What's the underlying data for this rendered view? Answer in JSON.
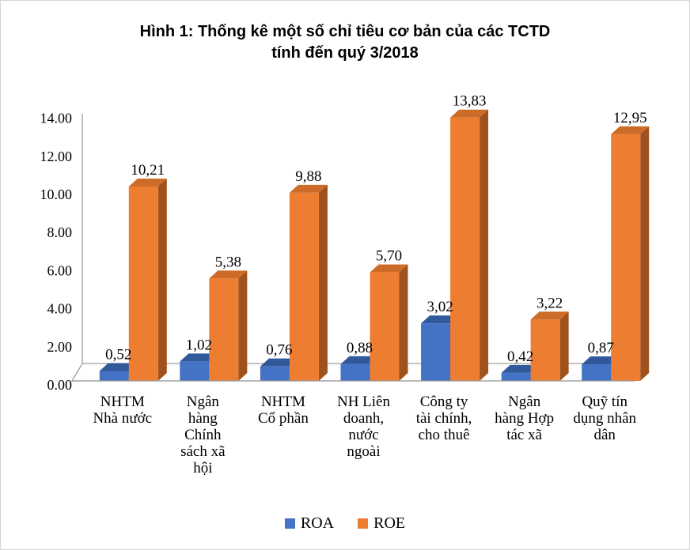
{
  "title": {
    "line1": "Hình 1: Thống kê một số chỉ tiêu cơ bản của các TCTD",
    "line2": "tính đến quý 3/2018"
  },
  "legend": [
    {
      "label": "ROA",
      "color": "#4472C4"
    },
    {
      "label": "ROE",
      "color": "#ED7D31"
    }
  ],
  "chart_data": {
    "type": "bar",
    "style": "3d-clustered-column",
    "title": "Hình 1: Thống kê một số chỉ tiêu cơ bản của các TCTD tính đến quý 3/2018",
    "categories": [
      "NHTM Nhà nước",
      "Ngân hàng Chính sách xã hội",
      "NHTM Cổ phần",
      "NH Liên doanh, nước ngoài",
      "Công ty tài chính, cho thuê",
      "Ngân hàng Hợp tác xã",
      "Quỹ tín dụng nhân dân"
    ],
    "category_display_lines": [
      "NHTM\nNhà nước",
      "Ngân\nhàng\nChính\nsách xã\nhội",
      "NHTM\nCổ phần",
      "NH Liên\ndoanh,\nnước\nngoài",
      "Công ty\ntài chính,\ncho thuê",
      "Ngân\nhàng Hợp\ntác xã",
      "Quỹ tín\ndụng nhân\ndân"
    ],
    "series": [
      {
        "name": "ROA",
        "color": "#4472C4",
        "color_top": "#31589B",
        "color_side": "#2A4A84",
        "values": [
          0.52,
          1.02,
          0.76,
          0.88,
          3.02,
          0.42,
          0.87
        ],
        "data_labels": [
          "0,52",
          "1,02",
          "0,76",
          "0,88",
          "3,02",
          "0,42",
          "0,87"
        ]
      },
      {
        "name": "ROE",
        "color": "#ED7D31",
        "color_top": "#CD6C28",
        "color_side": "#A0521E",
        "values": [
          10.21,
          5.38,
          9.88,
          5.7,
          13.83,
          3.22,
          12.95
        ],
        "data_labels": [
          "10,21",
          "5,38",
          "9,88",
          "5,70",
          "13,83",
          "3,22",
          "12,95"
        ]
      }
    ],
    "ylim": [
      0,
      14
    ],
    "ytick_step": 2,
    "ytick_labels": [
      "0.00",
      "2.00",
      "4.00",
      "6.00",
      "8.00",
      "10.00",
      "12.00",
      "14.00"
    ],
    "grid": false,
    "legend_position": "bottom",
    "axis_line_color": "#9f9f9f"
  }
}
